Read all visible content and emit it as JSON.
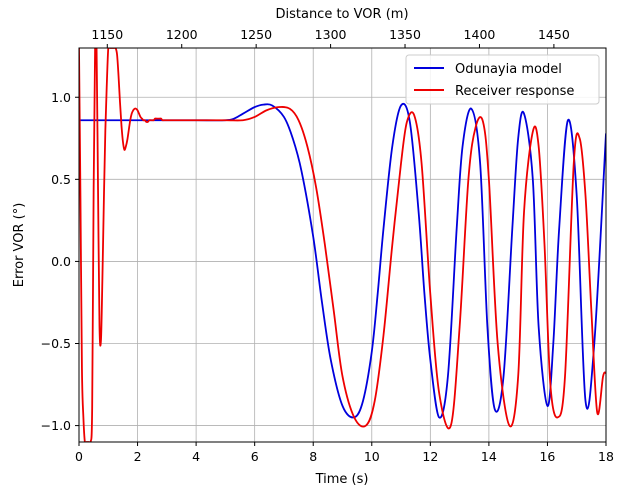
{
  "chart_data": {
    "type": "line",
    "xlabel": "Time (s)",
    "ylabel": "Error VOR (°)",
    "x2label": "Distance to VOR (m)",
    "xlim": [
      0,
      18
    ],
    "ylim": [
      -1.1,
      1.3
    ],
    "x2lim": [
      1131,
      1485
    ],
    "xticks": [
      "0",
      "2",
      "4",
      "6",
      "8",
      "10",
      "12",
      "14",
      "16",
      "18"
    ],
    "yticks": [
      "−1.0",
      "−0.5",
      "0.0",
      "0.5",
      "1.0"
    ],
    "x2ticks": [
      "1150",
      "1200",
      "1250",
      "1300",
      "1350",
      "1400",
      "1450"
    ],
    "grid": true,
    "legend_position": "top-right",
    "series": [
      {
        "name": "Odunayia model",
        "color": "#0000dd",
        "x": [
          0,
          0.5,
          1,
          2,
          3,
          4,
          5,
          5.3,
          5.6,
          6,
          6.3,
          6.6,
          7,
          7.3,
          7.6,
          8,
          8.3,
          8.6,
          9,
          9.4,
          9.7,
          10.0,
          10.2,
          10.4,
          10.7,
          11.0,
          11.3,
          11.6,
          11.8,
          12.0,
          12.3,
          12.6,
          12.9,
          13.1,
          13.4,
          13.7,
          13.95,
          14.2,
          14.5,
          14.8,
          15.0,
          15.2,
          15.5,
          15.7,
          16.0,
          16.2,
          16.4,
          16.7,
          17.0,
          17.3,
          17.6,
          18.0
        ],
        "y": [
          0.86,
          0.86,
          0.86,
          0.86,
          0.86,
          0.86,
          0.86,
          0.87,
          0.9,
          0.94,
          0.955,
          0.95,
          0.88,
          0.75,
          0.55,
          0.15,
          -0.25,
          -0.6,
          -0.88,
          -0.95,
          -0.85,
          -0.55,
          -0.2,
          0.2,
          0.7,
          0.95,
          0.85,
          0.3,
          -0.2,
          -0.6,
          -0.95,
          -0.7,
          0.2,
          0.7,
          0.93,
          0.6,
          -0.4,
          -0.9,
          -0.7,
          0.2,
          0.75,
          0.9,
          0.5,
          -0.4,
          -0.88,
          -0.5,
          0.2,
          0.86,
          0.4,
          -0.85,
          -0.5,
          0.78
        ]
      },
      {
        "name": "Receiver response",
        "color": "#ee0000",
        "x": [
          0,
          0.05,
          0.1,
          0.15,
          0.2,
          0.25,
          0.3,
          0.35,
          0.4,
          0.45,
          0.5,
          0.55,
          0.6,
          0.65,
          0.7,
          0.75,
          0.8,
          0.85,
          0.9,
          0.95,
          1.0,
          1.05,
          1.1,
          1.15,
          1.2,
          1.25,
          1.3,
          1.35,
          1.4,
          1.45,
          1.5,
          1.55,
          1.6,
          1.65,
          1.7,
          1.75,
          1.8,
          1.85,
          1.9,
          1.95,
          2.0,
          2.05,
          2.1,
          2.15,
          2.2,
          2.25,
          2.3,
          2.35,
          2.4,
          2.45,
          2.5,
          2.55,
          2.6,
          2.65,
          2.7,
          2.75,
          2.8,
          2.85,
          2.9,
          2.95,
          3.0,
          3.05,
          3.1,
          3.15,
          3.2,
          3.25,
          3.3,
          3.35,
          3.4,
          3.45,
          3.5,
          3.55,
          3.6,
          3.65,
          3.7,
          3.75,
          3.8,
          3.85,
          3.9,
          3.95,
          4.0,
          5,
          5.6,
          6,
          6.4,
          6.8,
          7.2,
          7.5,
          7.8,
          8.1,
          8.4,
          8.7,
          9.0,
          9.4,
          9.8,
          10.1,
          10.4,
          10.7,
          11.0,
          11.2,
          11.45,
          11.7,
          12.0,
          12.3,
          12.7,
          13.0,
          13.3,
          13.55,
          13.8,
          14.0,
          14.3,
          14.7,
          15.0,
          15.2,
          15.5,
          15.7,
          15.9,
          16.1,
          16.35,
          16.6,
          16.9,
          17.1,
          17.3,
          17.5,
          17.7,
          17.9,
          18.0
        ],
        "y": [
          1.3,
          0.38,
          -0.65,
          -0.95,
          -1.1,
          -1.1,
          -1.1,
          -1.1,
          -1.1,
          -0.89,
          0.44,
          1.3,
          1.3,
          0.44,
          -0.39,
          -0.48,
          -0.1,
          0.38,
          0.8,
          1.08,
          1.3,
          1.3,
          1.3,
          1.3,
          1.3,
          1.3,
          1.26,
          1.13,
          0.97,
          0.83,
          0.73,
          0.68,
          0.7,
          0.74,
          0.8,
          0.86,
          0.9,
          0.92,
          0.93,
          0.93,
          0.92,
          0.9,
          0.88,
          0.87,
          0.86,
          0.86,
          0.85,
          0.85,
          0.86,
          0.86,
          0.86,
          0.86,
          0.87,
          0.87,
          0.87,
          0.87,
          0.87,
          0.86,
          0.86,
          0.86,
          0.86,
          0.86,
          0.86,
          0.86,
          0.86,
          0.86,
          0.86,
          0.86,
          0.86,
          0.86,
          0.86,
          0.86,
          0.86,
          0.86,
          0.86,
          0.86,
          0.86,
          0.86,
          0.86,
          0.86,
          0.86,
          0.86,
          0.86,
          0.88,
          0.92,
          0.94,
          0.93,
          0.86,
          0.7,
          0.45,
          0.1,
          -0.3,
          -0.7,
          -0.95,
          -1.0,
          -0.85,
          -0.45,
          0.1,
          0.6,
          0.85,
          0.89,
          0.6,
          -0.2,
          -0.8,
          -1.0,
          -0.4,
          0.5,
          0.82,
          0.85,
          0.5,
          -0.5,
          -1.0,
          -0.7,
          0.3,
          0.79,
          0.7,
          0.1,
          -0.75,
          -0.95,
          -0.7,
          0.6,
          0.75,
          0.4,
          -0.3,
          -0.92,
          -0.7,
          -0.68
        ]
      }
    ]
  }
}
